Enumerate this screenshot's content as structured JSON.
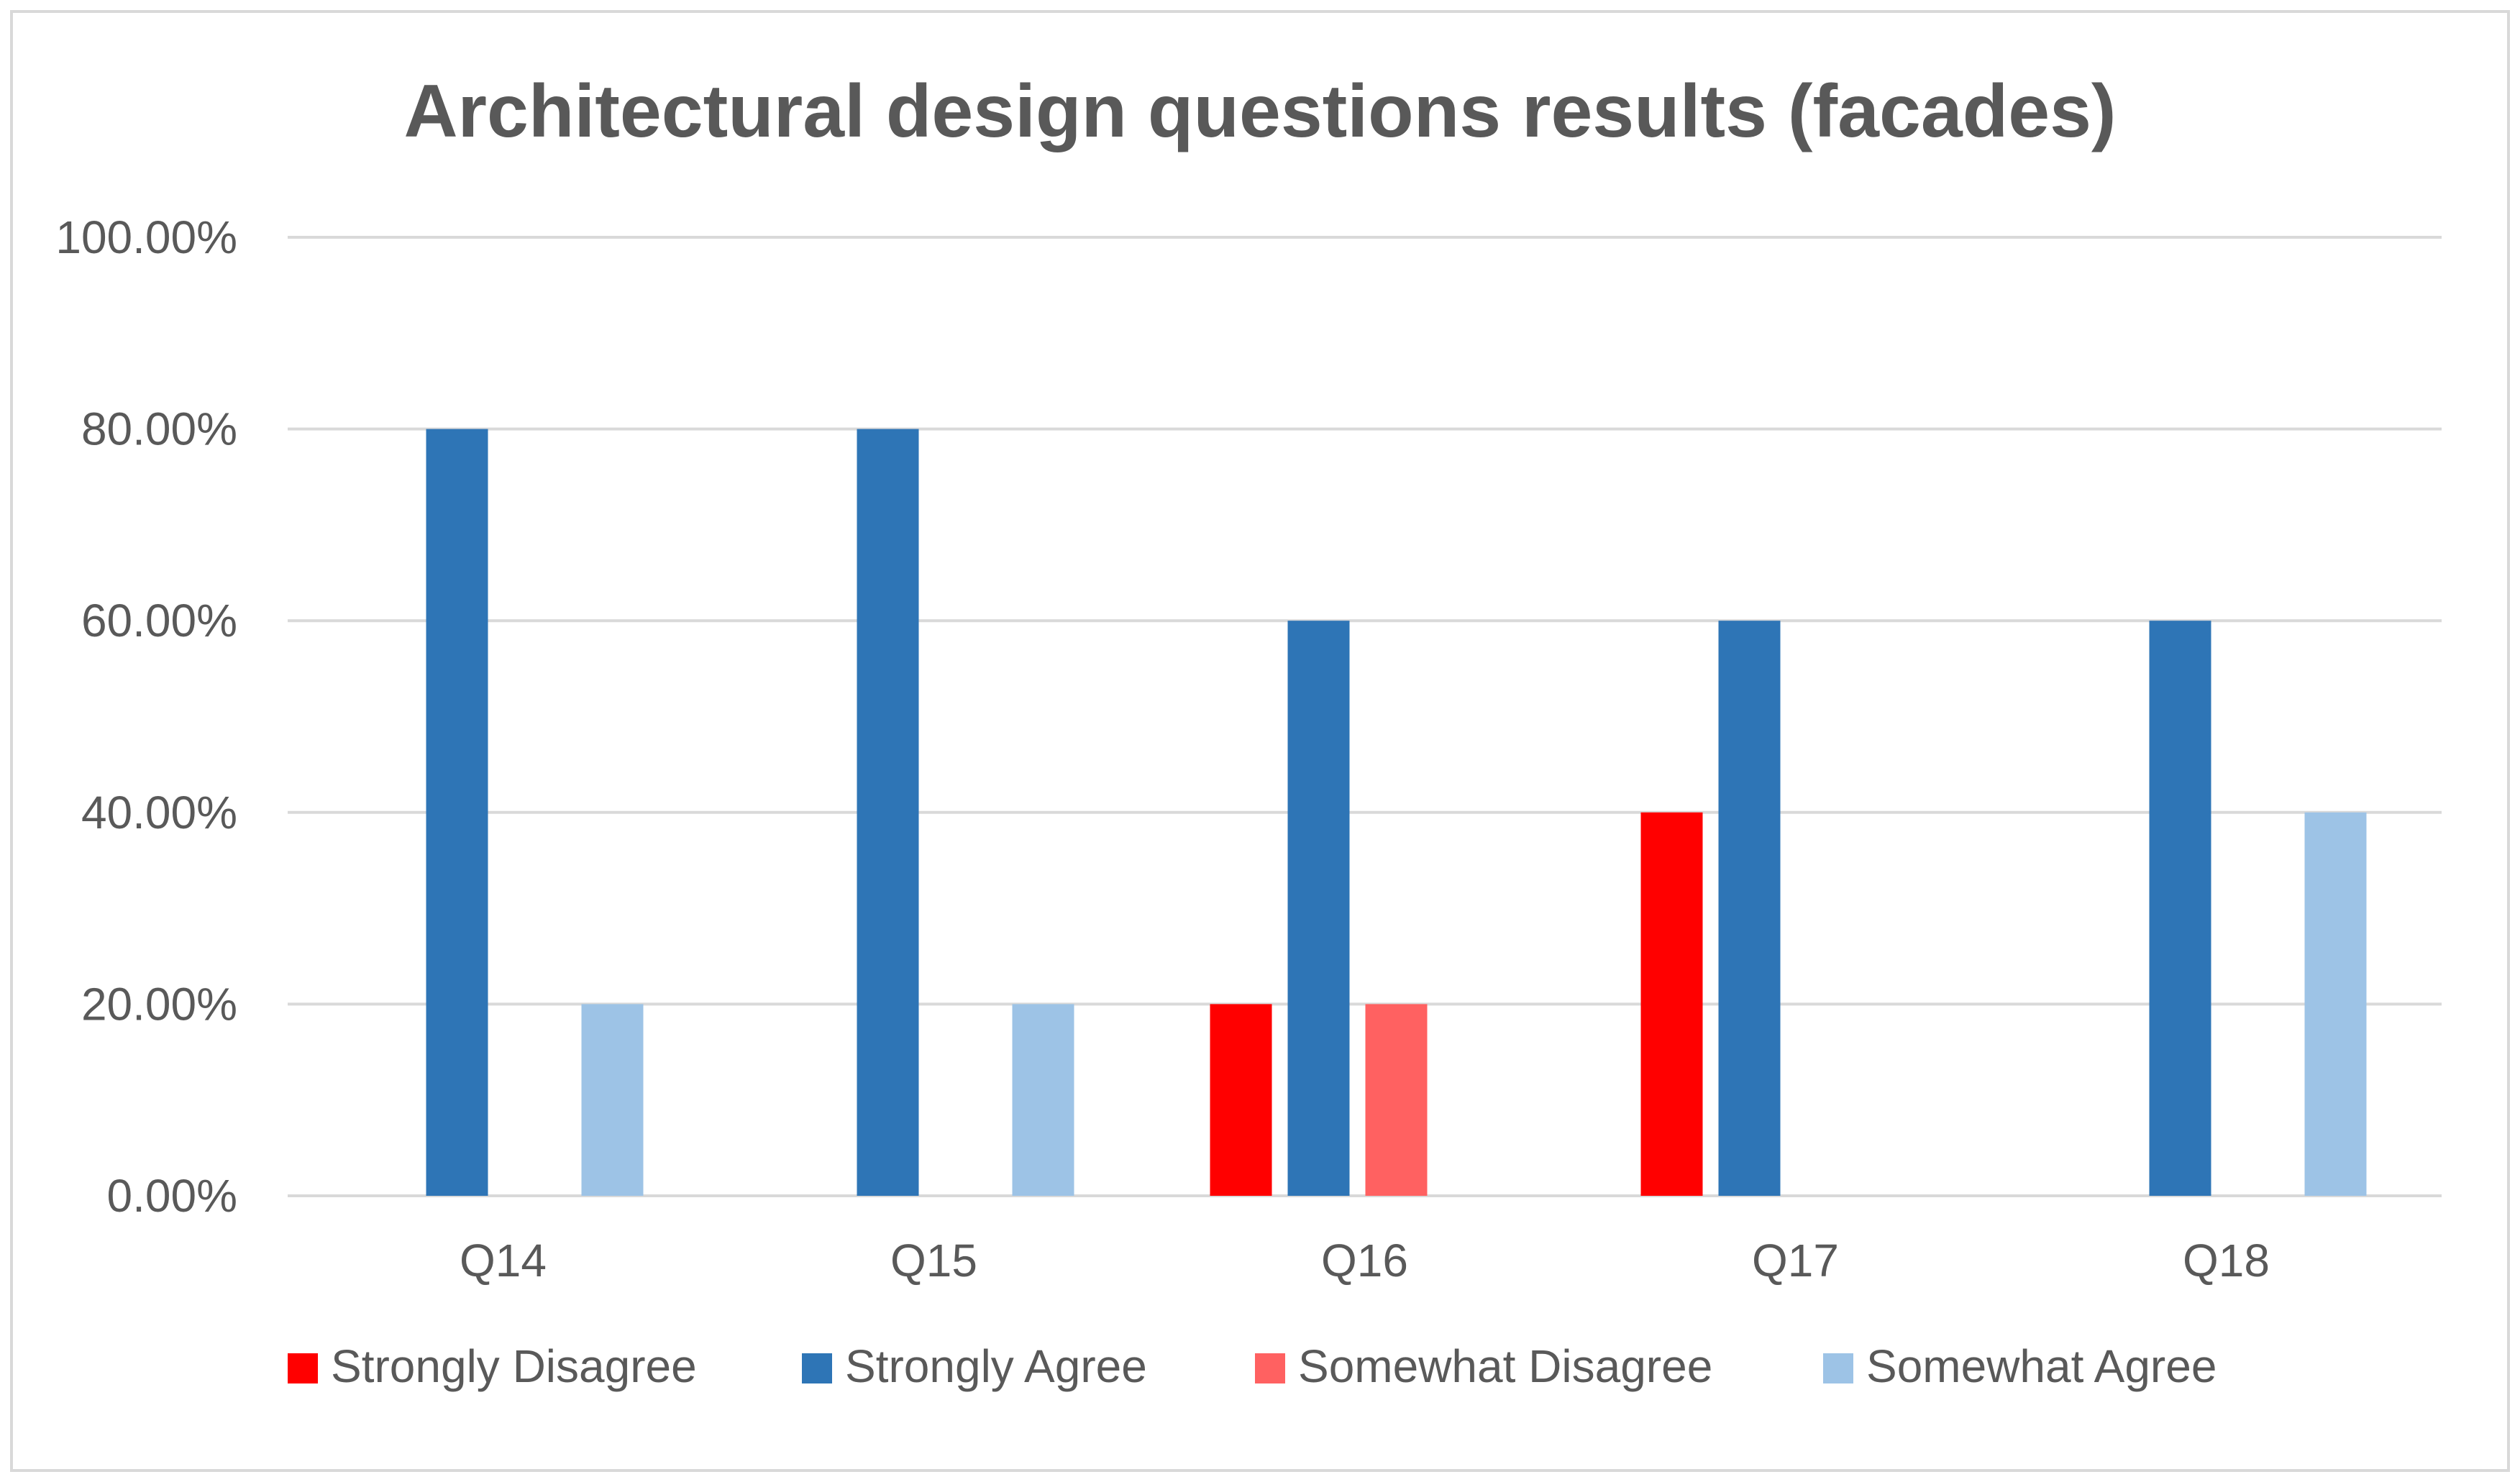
{
  "chart_data": {
    "type": "bar",
    "title": "Architectural design questions results (facades)",
    "xlabel": "",
    "ylabel": "",
    "categories": [
      "Q14",
      "Q15",
      "Q16",
      "Q17",
      "Q18"
    ],
    "series": [
      {
        "name": "Strongly Disagree",
        "color": "#ff0000",
        "values": [
          0,
          0,
          20,
          40,
          0
        ]
      },
      {
        "name": "Strongly Agree",
        "color": "#2e75b6",
        "values": [
          80,
          80,
          60,
          60,
          60
        ]
      },
      {
        "name": "Somewhat Disagree",
        "color": "#ff6161",
        "values": [
          0,
          0,
          20,
          0,
          0
        ]
      },
      {
        "name": "Somewhat Agree",
        "color": "#9dc3e6",
        "values": [
          20,
          20,
          0,
          0,
          40
        ]
      }
    ],
    "ylim": [
      0,
      100
    ],
    "y_ticks": [
      0,
      20,
      40,
      60,
      80,
      100
    ],
    "y_tick_labels": [
      "0.00%",
      "20.00%",
      "40.00%",
      "60.00%",
      "80.00%",
      "100.00%"
    ],
    "grid": true,
    "legend_position": "bottom",
    "gridline_color": "#d9d9d9"
  }
}
